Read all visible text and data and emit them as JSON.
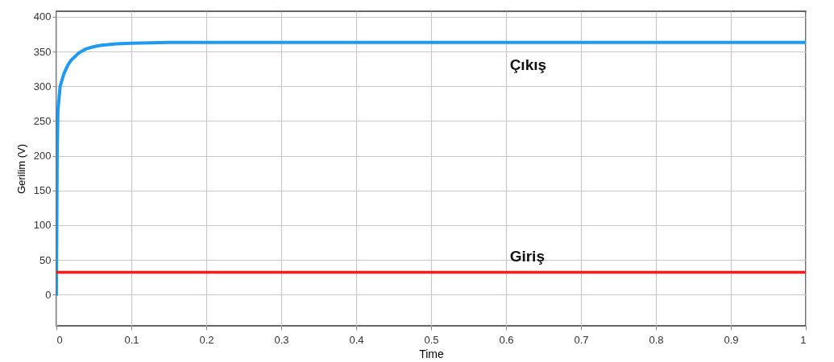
{
  "chart_data": {
    "type": "line",
    "xlabel": "Time",
    "ylabel": "Gerilim (V)",
    "xlim": [
      0,
      1
    ],
    "xticks": [
      0,
      0.1,
      0.2,
      0.3,
      0.4,
      0.5,
      0.6,
      0.7,
      0.8,
      0.9,
      1
    ],
    "ylim": [
      -45,
      408
    ],
    "yticks": [
      0,
      50,
      100,
      150,
      200,
      250,
      300,
      350,
      400
    ],
    "grid": true,
    "legend": false,
    "line_style": "solid",
    "marker": "none",
    "series": [
      {
        "name": "Çıkış",
        "color": "#1e9bf0",
        "x": [
          0,
          0.001,
          0.002,
          0.005,
          0.01,
          0.015,
          0.02,
          0.03,
          0.04,
          0.05,
          0.06,
          0.08,
          0.1,
          0.15,
          0.2,
          0.3,
          0.4,
          0.5,
          0.6,
          0.7,
          0.8,
          0.9,
          1
        ],
        "values": [
          0,
          200,
          265,
          300,
          318,
          330,
          338,
          348,
          354,
          357,
          359,
          361,
          362,
          363,
          363,
          363,
          363,
          363,
          363,
          363,
          363,
          363,
          363
        ]
      },
      {
        "name": "Giriş",
        "color": "#ff1a1a",
        "x": [
          0,
          1
        ],
        "values": [
          32,
          32
        ]
      }
    ]
  }
}
